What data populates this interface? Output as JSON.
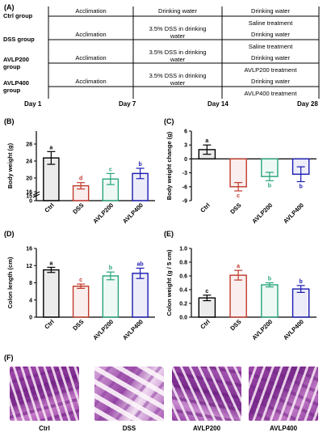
{
  "panel_a": {
    "label": "(A)",
    "groups": [
      {
        "name": "Ctrl group",
        "phase1": "Acclimation",
        "phase2": "Drinking water",
        "phase3a": "Drinking water",
        "phase3b": "Saline treatment"
      },
      {
        "name": "DSS group",
        "phase1": "Acclimation",
        "phase2": "3.5% DSS in drinking water",
        "phase3a": "Drinking water",
        "phase3b": "Saline treatment"
      },
      {
        "name": "AVLP200 group",
        "phase1": "Acclimation",
        "phase2": "3.5% DSS in drinking water",
        "phase3a": "Drinking water",
        "phase3b": "AVLP200 treatment"
      },
      {
        "name": "AVLP400 group",
        "phase1": "Acclimation",
        "phase2": "3.5% DSS in drinking water",
        "phase3a": "Drinking water",
        "phase3b": "AVLP400 treatment"
      }
    ],
    "days": [
      "Day 1",
      "Day 7",
      "Day 14",
      "Day 28"
    ]
  },
  "chart_data": [
    {
      "panel": "(B)",
      "type": "bar",
      "ylabel": "Body weight (g)",
      "categories": [
        "Ctrl",
        "DSS",
        "AVLP200",
        "AVLP400"
      ],
      "values": [
        24.5,
        17.5,
        19.2,
        20.6
      ],
      "errors": [
        1.6,
        0.8,
        1.4,
        1.3
      ],
      "sig": [
        "a",
        "d",
        "c",
        "b"
      ],
      "yticks": [
        "0",
        "15",
        "16",
        "20",
        "24",
        "28"
      ],
      "colors": [
        "#000000",
        "#c0392b",
        "#27a57a",
        "#1a1ab3"
      ]
    },
    {
      "panel": "(C)",
      "type": "bar",
      "ylabel": "Body weight change (g)",
      "categories": [
        "Ctrl",
        "DSS",
        "AVLP200",
        "AVLP400"
      ],
      "values": [
        2.0,
        -6.0,
        -3.8,
        -3.3
      ],
      "errors": [
        1.0,
        0.9,
        0.9,
        1.6
      ],
      "sig": [
        "a",
        "c",
        "b",
        "b"
      ],
      "yticks": [
        "6",
        "3",
        "0",
        "-3",
        "-6",
        "-9"
      ],
      "colors": [
        "#000000",
        "#c0392b",
        "#27a57a",
        "#1a1ab3"
      ]
    },
    {
      "panel": "(D)",
      "type": "bar",
      "ylabel": "Colon length (cm)",
      "categories": [
        "Ctrl",
        "DSS",
        "AVLP200",
        "AVLP400"
      ],
      "values": [
        11.0,
        7.2,
        9.6,
        10.2
      ],
      "errors": [
        0.6,
        0.5,
        0.9,
        1.2
      ],
      "sig": [
        "a",
        "c",
        "b",
        "ab"
      ],
      "yticks": [
        "0",
        "4",
        "8",
        "12",
        "16"
      ],
      "colors": [
        "#000000",
        "#c0392b",
        "#27a57a",
        "#1a1ab3"
      ]
    },
    {
      "panel": "(E)",
      "type": "bar",
      "ylabel": "Colon weight (g / 5 cm)",
      "categories": [
        "Ctrl",
        "DSS",
        "AVLP200",
        "AVLP400"
      ],
      "values": [
        0.28,
        0.61,
        0.47,
        0.41
      ],
      "errors": [
        0.04,
        0.07,
        0.03,
        0.05
      ],
      "sig": [
        "c",
        "a",
        "b",
        "b"
      ],
      "yticks": [
        "0.0",
        "0.2",
        "0.4",
        "0.6",
        "0.8",
        "1.0"
      ],
      "colors": [
        "#000000",
        "#c0392b",
        "#27a57a",
        "#1a1ab3"
      ]
    }
  ],
  "panel_f": {
    "label": "(F)",
    "captions": [
      "Ctrl",
      "DSS",
      "AVLP200",
      "AVLP400"
    ]
  }
}
